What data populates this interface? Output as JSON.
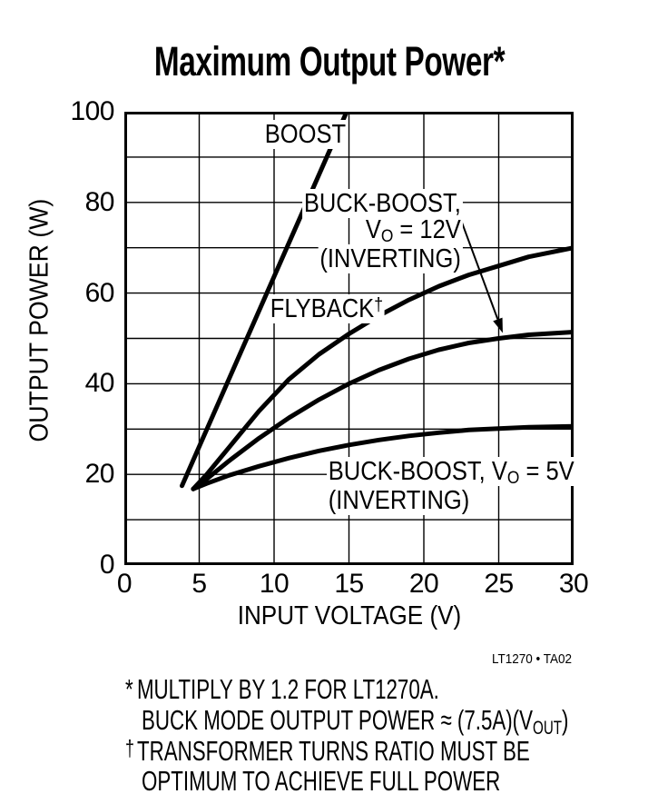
{
  "page": {
    "background": "#ffffff",
    "ink": "#000000"
  },
  "chart_data": {
    "type": "line",
    "title": "Maximum Output Power*",
    "xlabel": "INPUT VOLTAGE (V)",
    "ylabel": "OUTPUT POWER (W)",
    "xlim": [
      0,
      30
    ],
    "ylim": [
      0,
      100
    ],
    "xticks": [
      0,
      5,
      10,
      15,
      20,
      25,
      30
    ],
    "yticks": [
      0,
      20,
      40,
      60,
      80,
      100
    ],
    "grid_step": {
      "x": 5,
      "y": 10
    },
    "grid": true,
    "line_color": "#000000",
    "series": [
      {
        "name": "BOOST",
        "slug": "boost",
        "points": [
          [
            3.85,
            17.5
          ],
          [
            14.85,
            100
          ]
        ]
      },
      {
        "name": "FLYBACK†",
        "slug": "flyback",
        "points": [
          [
            4.6,
            16.8
          ],
          [
            5.5,
            20
          ],
          [
            7,
            26
          ],
          [
            9,
            34
          ],
          [
            11,
            41
          ],
          [
            13,
            46.5
          ],
          [
            15,
            51
          ],
          [
            17,
            55
          ],
          [
            19,
            58.5
          ],
          [
            21,
            61.5
          ],
          [
            23,
            64
          ],
          [
            25,
            66
          ],
          [
            27,
            68
          ],
          [
            30,
            70
          ]
        ]
      },
      {
        "name": "BUCK-BOOST, VO = 12V (INVERTING)",
        "slug": "buck-boost-12v",
        "points": [
          [
            4.6,
            16.8
          ],
          [
            5.5,
            19
          ],
          [
            7,
            23
          ],
          [
            9,
            28
          ],
          [
            11,
            32.5
          ],
          [
            13,
            36.5
          ],
          [
            15,
            40
          ],
          [
            17,
            43
          ],
          [
            19,
            45.5
          ],
          [
            21,
            47.5
          ],
          [
            23,
            49
          ],
          [
            25,
            50
          ],
          [
            27,
            50.8
          ],
          [
            30,
            51.4
          ]
        ]
      },
      {
        "name": "BUCK-BOOST, VO = 5V (INVERTING)",
        "slug": "buck-boost-5v",
        "points": [
          [
            4.6,
            16.8
          ],
          [
            5.5,
            18
          ],
          [
            7,
            19.8
          ],
          [
            9,
            21.8
          ],
          [
            11,
            23.6
          ],
          [
            13,
            25.2
          ],
          [
            15,
            26.5
          ],
          [
            17,
            27.6
          ],
          [
            19,
            28.5
          ],
          [
            21,
            29.2
          ],
          [
            23,
            29.8
          ],
          [
            25,
            30.1
          ],
          [
            27,
            30.4
          ],
          [
            30,
            30.6
          ]
        ]
      }
    ],
    "annotation_arrow": {
      "from": [
        22.18,
        78.8
      ],
      "to": [
        25.27,
        51.2
      ]
    }
  },
  "labels": {
    "boost": "BOOST",
    "flyback": "FLYBACK",
    "flyback_sup": "†",
    "buck12_line1": "BUCK-BOOST,",
    "buck12_l2_pre": "V",
    "buck12_l2_sub": "O",
    "buck12_l2_post": " = 12V",
    "buck12_line3": "(INVERTING)",
    "buck5_l1_pre": "BUCK-BOOST, V",
    "buck5_l1_sub": "O",
    "buck5_l1_post": " = 5V",
    "buck5_line2": "(INVERTING)"
  },
  "code_ref": "LT1270 • TA02",
  "footnotes": {
    "star_marker": "*",
    "star_line1": "MULTIPLY BY 1.2 FOR LT1270A.",
    "star_l2_pre": "BUCK MODE OUTPUT POWER ≈ (7.5A)(V",
    "star_l2_sub": "OUT",
    "star_l2_post": ")",
    "dagger_marker": "†",
    "dagger_line1": "TRANSFORMER TURNS RATIO MUST BE",
    "dagger_line2": "OPTIMUM TO ACHIEVE FULL POWER"
  }
}
